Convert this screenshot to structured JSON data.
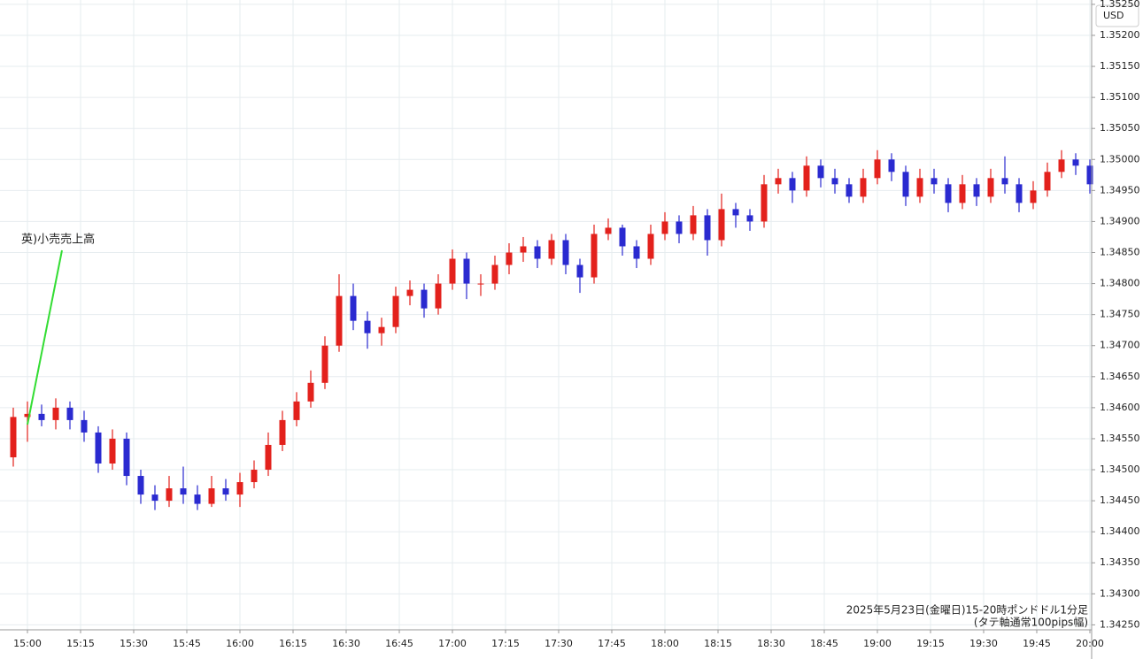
{
  "chart_data": {
    "type": "candlestick",
    "annotation": "英)小売売上高",
    "caption": [
      "2025年5月23日(金曜日)15-20時ポンドドル1分足",
      "(タテ軸通常100pips幅)"
    ],
    "y_axis_label": "USD",
    "up_color": "#e3211c",
    "down_color": "#2a2ad0",
    "grid": true,
    "xlim": [
      -7.75,
      300.5
    ],
    "ylim": [
      1.34242,
      1.35257
    ],
    "xticks": [
      {
        "value": 0,
        "label": "15:00"
      },
      {
        "value": 15,
        "label": "15:15"
      },
      {
        "value": 30,
        "label": "15:30"
      },
      {
        "value": 45,
        "label": "15:45"
      },
      {
        "value": 60,
        "label": "16:00"
      },
      {
        "value": 75,
        "label": "16:15"
      },
      {
        "value": 90,
        "label": "16:30"
      },
      {
        "value": 105,
        "label": "16:45"
      },
      {
        "value": 120,
        "label": "17:00"
      },
      {
        "value": 135,
        "label": "17:15"
      },
      {
        "value": 150,
        "label": "17:30"
      },
      {
        "value": 165,
        "label": "17:45"
      },
      {
        "value": 180,
        "label": "18:00"
      },
      {
        "value": 195,
        "label": "18:15"
      },
      {
        "value": 210,
        "label": "18:30"
      },
      {
        "value": 225,
        "label": "18:45"
      },
      {
        "value": 240,
        "label": "19:00"
      },
      {
        "value": 255,
        "label": "19:15"
      },
      {
        "value": 270,
        "label": "19:30"
      },
      {
        "value": 285,
        "label": "19:45"
      },
      {
        "value": 300,
        "label": "20:00"
      }
    ],
    "yticks": [
      {
        "value": 1.3425,
        "label": "1.34250"
      },
      {
        "value": 1.343,
        "label": "1.34300"
      },
      {
        "value": 1.3435,
        "label": "1.34350"
      },
      {
        "value": 1.344,
        "label": "1.34400"
      },
      {
        "value": 1.3445,
        "label": "1.34450"
      },
      {
        "value": 1.345,
        "label": "1.34500"
      },
      {
        "value": 1.3455,
        "label": "1.34550"
      },
      {
        "value": 1.346,
        "label": "1.34600"
      },
      {
        "value": 1.3465,
        "label": "1.34650"
      },
      {
        "value": 1.347,
        "label": "1.34700"
      },
      {
        "value": 1.3475,
        "label": "1.34750"
      },
      {
        "value": 1.348,
        "label": "1.34800"
      },
      {
        "value": 1.3485,
        "label": "1.34850"
      },
      {
        "value": 1.349,
        "label": "1.34900"
      },
      {
        "value": 1.3495,
        "label": "1.34950"
      },
      {
        "value": 1.35,
        "label": "1.35000"
      },
      {
        "value": 1.3505,
        "label": "1.35050"
      },
      {
        "value": 1.351,
        "label": "1.35100"
      },
      {
        "value": 1.3515,
        "label": "1.35150"
      },
      {
        "value": 1.352,
        "label": "1.35200"
      },
      {
        "value": 1.3525,
        "label": "1.35250"
      }
    ],
    "x": [
      -4,
      0,
      4,
      8,
      12,
      16,
      20,
      24,
      28,
      32,
      36,
      40,
      44,
      48,
      52,
      56,
      60,
      64,
      68,
      72,
      76,
      80,
      84,
      88,
      92,
      96,
      100,
      104,
      108,
      112,
      116,
      120,
      124,
      128,
      132,
      136,
      140,
      144,
      148,
      152,
      156,
      160,
      164,
      168,
      172,
      176,
      180,
      184,
      188,
      192,
      196,
      200,
      204,
      208,
      212,
      216,
      220,
      224,
      228,
      232,
      236,
      240,
      244,
      248,
      252,
      256,
      260,
      264,
      268,
      272,
      276,
      280,
      284,
      288,
      292,
      296,
      300
    ],
    "open": [
      1.3452,
      1.34585,
      1.3459,
      1.3458,
      1.346,
      1.3458,
      1.3456,
      1.3451,
      1.3455,
      1.3449,
      1.3446,
      1.3445,
      1.3447,
      1.3446,
      1.34445,
      1.3447,
      1.3446,
      1.3448,
      1.345,
      1.3454,
      1.3458,
      1.3461,
      1.3464,
      1.347,
      1.3478,
      1.3474,
      1.3472,
      1.3473,
      1.3478,
      1.3479,
      1.3476,
      1.348,
      1.3484,
      1.348,
      1.348,
      1.3483,
      1.3485,
      1.3486,
      1.3484,
      1.3487,
      1.3483,
      1.3481,
      1.3488,
      1.3489,
      1.3486,
      1.3484,
      1.3488,
      1.349,
      1.3488,
      1.3491,
      1.3487,
      1.3492,
      1.3491,
      1.349,
      1.3496,
      1.3497,
      1.3495,
      1.3499,
      1.3497,
      1.3496,
      1.3494,
      1.3497,
      1.35,
      1.3498,
      1.3494,
      1.3497,
      1.3496,
      1.3493,
      1.3496,
      1.3494,
      1.3497,
      1.3496,
      1.3493,
      1.3495,
      1.3498,
      1.35,
      1.3499
    ],
    "high": [
      1.346,
      1.3461,
      1.34605,
      1.34615,
      1.3461,
      1.34595,
      1.3457,
      1.34565,
      1.3456,
      1.345,
      1.34475,
      1.3449,
      1.34505,
      1.34475,
      1.3449,
      1.34485,
      1.34495,
      1.34515,
      1.3456,
      1.34595,
      1.34625,
      1.3466,
      1.34715,
      1.34815,
      1.348,
      1.34755,
      1.34745,
      1.34795,
      1.34805,
      1.348,
      1.34815,
      1.34855,
      1.3485,
      1.34815,
      1.34845,
      1.34865,
      1.34875,
      1.3487,
      1.3488,
      1.3488,
      1.3484,
      1.34895,
      1.34905,
      1.34895,
      1.3487,
      1.34895,
      1.34915,
      1.3491,
      1.34925,
      1.3492,
      1.34945,
      1.3493,
      1.3492,
      1.34975,
      1.34985,
      1.3498,
      1.35005,
      1.35,
      1.34985,
      1.3497,
      1.34985,
      1.35015,
      1.3501,
      1.3499,
      1.34985,
      1.34985,
      1.3497,
      1.34975,
      1.3497,
      1.34985,
      1.35005,
      1.3497,
      1.34965,
      1.34995,
      1.35015,
      1.3501,
      1.35
    ],
    "low": [
      1.34505,
      1.34545,
      1.3457,
      1.34565,
      1.34565,
      1.34545,
      1.34495,
      1.345,
      1.34475,
      1.34445,
      1.34435,
      1.3444,
      1.34445,
      1.34435,
      1.3444,
      1.3445,
      1.3444,
      1.3447,
      1.3449,
      1.3453,
      1.3457,
      1.346,
      1.3463,
      1.3469,
      1.34725,
      1.34695,
      1.347,
      1.3472,
      1.34765,
      1.34745,
      1.3475,
      1.3479,
      1.34775,
      1.3478,
      1.3479,
      1.34815,
      1.34835,
      1.34825,
      1.3483,
      1.34815,
      1.34785,
      1.348,
      1.3487,
      1.34845,
      1.34825,
      1.3483,
      1.3487,
      1.34865,
      1.3487,
      1.34845,
      1.3486,
      1.3489,
      1.34885,
      1.3489,
      1.34945,
      1.3493,
      1.3494,
      1.34955,
      1.34945,
      1.3493,
      1.3493,
      1.3496,
      1.34965,
      1.34925,
      1.3493,
      1.34945,
      1.34915,
      1.3492,
      1.34925,
      1.3493,
      1.34945,
      1.34915,
      1.3492,
      1.3494,
      1.3497,
      1.34975,
      1.34945
    ],
    "close": [
      1.34585,
      1.3459,
      1.3458,
      1.346,
      1.3458,
      1.3456,
      1.3451,
      1.3455,
      1.3449,
      1.3446,
      1.3445,
      1.3447,
      1.3446,
      1.34445,
      1.3447,
      1.3446,
      1.3448,
      1.345,
      1.3454,
      1.3458,
      1.3461,
      1.3464,
      1.347,
      1.3478,
      1.3474,
      1.3472,
      1.3473,
      1.3478,
      1.3479,
      1.3476,
      1.348,
      1.3484,
      1.348,
      1.348,
      1.3483,
      1.3485,
      1.3486,
      1.3484,
      1.3487,
      1.3483,
      1.3481,
      1.3488,
      1.3489,
      1.3486,
      1.3484,
      1.3488,
      1.349,
      1.3488,
      1.3491,
      1.3487,
      1.3492,
      1.3491,
      1.349,
      1.3496,
      1.3497,
      1.3495,
      1.3499,
      1.3497,
      1.3496,
      1.3494,
      1.3497,
      1.35,
      1.3498,
      1.3494,
      1.3497,
      1.3496,
      1.3493,
      1.3496,
      1.3494,
      1.3497,
      1.3496,
      1.3493,
      1.3495,
      1.3498,
      1.35,
      1.3499,
      1.3496
    ]
  }
}
